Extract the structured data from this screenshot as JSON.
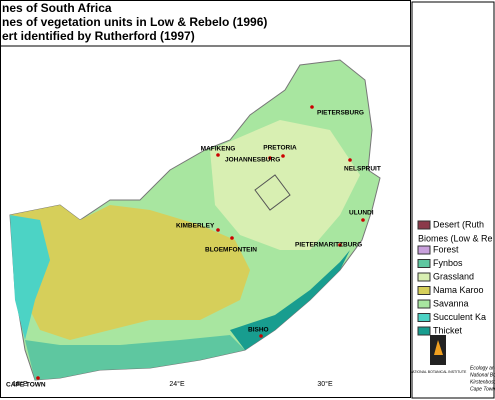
{
  "header": {
    "lines": [
      "nes of South Africa",
      "nes of vegetation units in Low & Rebelo (1996)",
      "ert identified by Rutherford (1997)"
    ]
  },
  "cities": [
    "PIETERSBURG",
    "NELSPRUIT",
    "PRETORIA",
    "MAFIKENG",
    "JOHANNESBURG",
    "ULUNDI",
    "KIMBERLEY",
    "BLOEMFONTEIN",
    "PIETERMARITZBURG",
    "BISHO",
    "CAPE TOWN"
  ],
  "longitudes": [
    "18°E",
    "24°E",
    "30°E"
  ],
  "legend": {
    "desert": {
      "label": "Desert (Ruth",
      "color": "#8b3a4a"
    },
    "heading": "Biomes (Low & Re",
    "items": [
      {
        "label": "Forest",
        "color": "#c9a0dc"
      },
      {
        "label": "Fynbos",
        "color": "#5ec7a0"
      },
      {
        "label": "Grassland",
        "color": "#d8efb2"
      },
      {
        "label": "Nama Karoo",
        "color": "#d6cf5a"
      },
      {
        "label": "Savanna",
        "color": "#a8e6a0"
      },
      {
        "label": "Succulent Ka",
        "color": "#4cd3c5"
      },
      {
        "label": "Thicket",
        "color": "#189d8f"
      }
    ]
  },
  "credits": [
    "Ecology and",
    "National Bo",
    "Kirstenbosch",
    "Cape Town"
  ],
  "logo": "NATIONAL BOTANICAL INSTITUTE"
}
